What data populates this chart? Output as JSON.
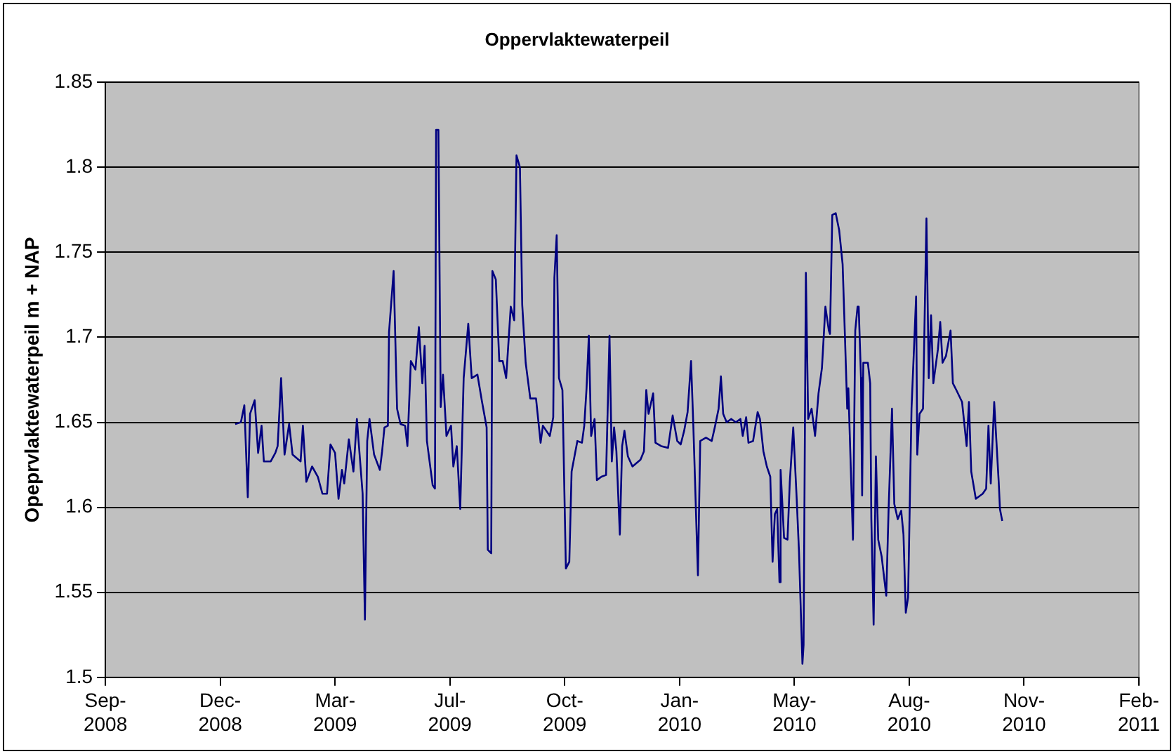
{
  "chart_data": {
    "type": "line",
    "title": "Oppervlaktewaterpeil",
    "ylabel": "Opeprvlaktewaterpeil m + NAP",
    "x": [
      "2008-12-31",
      "2009-01-05",
      "2009-01-08",
      "2009-01-11",
      "2009-01-13",
      "2009-01-17",
      "2009-01-20",
      "2009-01-23",
      "2009-01-25",
      "2009-01-31",
      "2009-02-04",
      "2009-02-06",
      "2009-02-09",
      "2009-02-12",
      "2009-02-16",
      "2009-02-19",
      "2009-02-26",
      "2009-02-28",
      "2009-03-03",
      "2009-03-08",
      "2009-03-13",
      "2009-03-17",
      "2009-03-21",
      "2009-03-24",
      "2009-03-28",
      "2009-03-31",
      "2009-04-03",
      "2009-04-05",
      "2009-04-09",
      "2009-04-13",
      "2009-04-16",
      "2009-04-21",
      "2009-04-23",
      "2009-04-25",
      "2009-04-27",
      "2009-05-01",
      "2009-05-06",
      "2009-05-08",
      "2009-05-10",
      "2009-05-13",
      "2009-05-14",
      "2009-05-18",
      "2009-05-21",
      "2009-05-24",
      "2009-05-28",
      "2009-05-30",
      "2009-06-02",
      "2009-06-06",
      "2009-06-09",
      "2009-06-12",
      "2009-06-14",
      "2009-06-16",
      "2009-06-21",
      "2009-06-23",
      "2009-06-24",
      "2009-06-26",
      "2009-06-28",
      "2009-06-30",
      "2009-07-03",
      "2009-07-07",
      "2009-07-09",
      "2009-07-12",
      "2009-07-15",
      "2009-07-18",
      "2009-07-22",
      "2009-07-25",
      "2009-07-30",
      "2009-08-03",
      "2009-08-07",
      "2009-08-08",
      "2009-08-11",
      "2009-08-12",
      "2009-08-15",
      "2009-08-18",
      "2009-08-21",
      "2009-08-24",
      "2009-08-28",
      "2009-08-31",
      "2009-09-02",
      "2009-09-05",
      "2009-09-07",
      "2009-09-10",
      "2009-09-14",
      "2009-09-19",
      "2009-09-23",
      "2009-09-25",
      "2009-10-01",
      "2009-10-04",
      "2009-10-05",
      "2009-10-07",
      "2009-10-09",
      "2009-10-12",
      "2009-10-15",
      "2009-10-18",
      "2009-10-20",
      "2009-10-25",
      "2009-10-29",
      "2009-10-31",
      "2009-11-02",
      "2009-11-04",
      "2009-11-06",
      "2009-11-09",
      "2009-11-11",
      "2009-11-15",
      "2009-11-19",
      "2009-11-22",
      "2009-11-24",
      "2009-11-26",
      "2009-11-28",
      "2009-12-01",
      "2009-12-03",
      "2009-12-05",
      "2009-12-08",
      "2009-12-12",
      "2009-12-19",
      "2009-12-22",
      "2009-12-24",
      "2009-12-26",
      "2009-12-30",
      "2010-01-01",
      "2010-01-06",
      "2010-01-12",
      "2010-01-16",
      "2010-01-20",
      "2010-01-23",
      "2010-01-26",
      "2010-01-29",
      "2010-02-01",
      "2010-02-03",
      "2010-02-07",
      "2010-02-09",
      "2010-02-14",
      "2010-02-19",
      "2010-02-22",
      "2010-02-25",
      "2010-02-27",
      "2010-03-01",
      "2010-03-04",
      "2010-03-08",
      "2010-03-12",
      "2010-03-16",
      "2010-03-18",
      "2010-03-21",
      "2010-03-23",
      "2010-03-27",
      "2010-03-31",
      "2010-04-02",
      "2010-04-05",
      "2010-04-08",
      "2010-04-11",
      "2010-04-13",
      "2010-04-15",
      "2010-04-17",
      "2010-04-19",
      "2010-04-20",
      "2010-04-23",
      "2010-04-26",
      "2010-04-28",
      "2010-05-01",
      "2010-05-04",
      "2010-05-06",
      "2010-05-09",
      "2010-05-10",
      "2010-05-12",
      "2010-05-14",
      "2010-05-17",
      "2010-05-20",
      "2010-05-23",
      "2010-05-26",
      "2010-05-29",
      "2010-06-01",
      "2010-06-02",
      "2010-06-04",
      "2010-06-07",
      "2010-06-10",
      "2010-06-13",
      "2010-06-15",
      "2010-06-17",
      "2010-06-18",
      "2010-06-22",
      "2010-06-24",
      "2010-06-26",
      "2010-06-27",
      "2010-06-29",
      "2010-06-30",
      "2010-07-01",
      "2010-07-05",
      "2010-07-07",
      "2010-07-08",
      "2010-07-10",
      "2010-07-12",
      "2010-07-14",
      "2010-07-17",
      "2010-07-21",
      "2010-07-23",
      "2010-07-26",
      "2010-07-28",
      "2010-07-31",
      "2010-08-03",
      "2010-08-05",
      "2010-08-07",
      "2010-08-09",
      "2010-08-12",
      "2010-08-16",
      "2010-08-17",
      "2010-08-19",
      "2010-08-22",
      "2010-08-25",
      "2010-08-27",
      "2010-08-29",
      "2010-08-31",
      "2010-09-04",
      "2010-09-06",
      "2010-09-08",
      "2010-09-11",
      "2010-09-15",
      "2010-09-17",
      "2010-09-20",
      "2010-09-25",
      "2010-09-29",
      "2010-10-01",
      "2010-10-03",
      "2010-10-07",
      "2010-10-13",
      "2010-10-16",
      "2010-10-18",
      "2010-10-20",
      "2010-10-23",
      "2010-10-25",
      "2010-10-27",
      "2010-10-28",
      "2010-10-30"
    ],
    "series": [
      {
        "color": "#000080",
        "values": [
          1.649,
          1.65,
          1.66,
          1.606,
          1.655,
          1.663,
          1.632,
          1.648,
          1.627,
          1.627,
          1.632,
          1.636,
          1.676,
          1.631,
          1.649,
          1.631,
          1.627,
          1.648,
          1.615,
          1.624,
          1.618,
          1.608,
          1.608,
          1.637,
          1.632,
          1.605,
          1.622,
          1.614,
          1.64,
          1.621,
          1.652,
          1.608,
          1.534,
          1.639,
          1.652,
          1.631,
          1.622,
          1.633,
          1.647,
          1.648,
          1.703,
          1.739,
          1.658,
          1.649,
          1.648,
          1.636,
          1.686,
          1.681,
          1.706,
          1.673,
          1.695,
          1.639,
          1.613,
          1.611,
          1.822,
          1.822,
          1.659,
          1.678,
          1.642,
          1.648,
          1.624,
          1.636,
          1.599,
          1.676,
          1.708,
          1.676,
          1.678,
          1.662,
          1.647,
          1.575,
          1.573,
          1.739,
          1.734,
          1.686,
          1.686,
          1.676,
          1.718,
          1.71,
          1.807,
          1.8,
          1.719,
          1.685,
          1.664,
          1.664,
          1.638,
          1.648,
          1.642,
          1.653,
          1.735,
          1.76,
          1.676,
          1.669,
          1.564,
          1.568,
          1.621,
          1.639,
          1.638,
          1.648,
          1.67,
          1.701,
          1.642,
          1.652,
          1.616,
          1.618,
          1.619,
          1.701,
          1.627,
          1.647,
          1.633,
          1.584,
          1.636,
          1.645,
          1.63,
          1.624,
          1.628,
          1.633,
          1.669,
          1.655,
          1.667,
          1.638,
          1.636,
          1.635,
          1.654,
          1.639,
          1.637,
          1.645,
          1.656,
          1.686,
          1.648,
          1.56,
          1.639,
          1.641,
          1.639,
          1.648,
          1.658,
          1.677,
          1.655,
          1.65,
          1.652,
          1.65,
          1.652,
          1.642,
          1.653,
          1.638,
          1.639,
          1.656,
          1.652,
          1.633,
          1.624,
          1.618,
          1.568,
          1.596,
          1.599,
          1.556,
          1.622,
          1.582,
          1.581,
          1.615,
          1.647,
          1.605,
          1.574,
          1.508,
          1.519,
          1.738,
          1.652,
          1.658,
          1.642,
          1.667,
          1.682,
          1.718,
          1.704,
          1.702,
          1.772,
          1.773,
          1.763,
          1.743,
          1.701,
          1.658,
          1.67,
          1.581,
          1.704,
          1.718,
          1.718,
          1.676,
          1.607,
          1.685,
          1.685,
          1.673,
          1.593,
          1.531,
          1.63,
          1.581,
          1.571,
          1.548,
          1.598,
          1.658,
          1.602,
          1.593,
          1.598,
          1.584,
          1.538,
          1.547,
          1.658,
          1.724,
          1.631,
          1.655,
          1.658,
          1.77,
          1.676,
          1.713,
          1.673,
          1.693,
          1.709,
          1.685,
          1.689,
          1.704,
          1.673,
          1.669,
          1.662,
          1.636,
          1.662,
          1.621,
          1.605,
          1.608,
          1.611,
          1.648,
          1.614,
          1.662,
          1.638,
          1.614,
          1.599,
          1.592
        ]
      }
    ],
    "xlim": [
      "2008-09-09",
      "2011-02-26"
    ],
    "xticks": [
      {
        "value": "2008-09-09",
        "label": "Sep-2008"
      },
      {
        "value": "2008-12-18",
        "label": "Dec-2008"
      },
      {
        "value": "2009-03-28",
        "label": "Mar-2009"
      },
      {
        "value": "2009-07-06",
        "label": "Jul-2009"
      },
      {
        "value": "2009-10-14",
        "label": "Oct-2009"
      },
      {
        "value": "2010-01-22",
        "label": "Jan-2010"
      },
      {
        "value": "2010-05-02",
        "label": "May-2010"
      },
      {
        "value": "2010-08-10",
        "label": "Aug-2010"
      },
      {
        "value": "2010-11-18",
        "label": "Nov-2010"
      },
      {
        "value": "2011-02-26",
        "label": "Feb-2011"
      }
    ],
    "ylim": [
      1.5,
      1.85
    ],
    "yticks": [
      1.5,
      1.55,
      1.6,
      1.65,
      1.7,
      1.75,
      1.8,
      1.85
    ],
    "grid": "y",
    "legend": false,
    "marker": "none",
    "line_style": "solid"
  }
}
